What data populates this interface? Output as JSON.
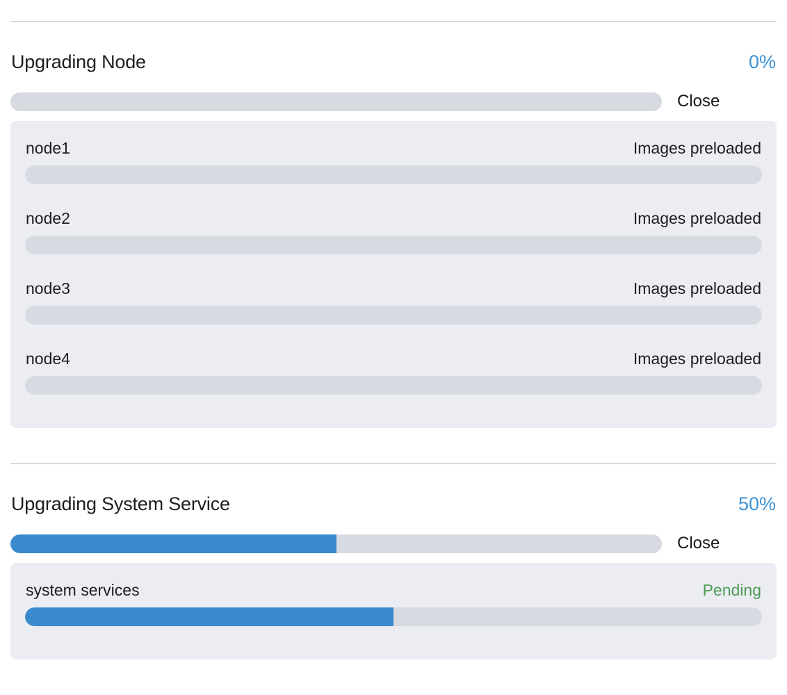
{
  "theme": {
    "accent_blue": "#398bce",
    "percent_blue": "#3c92d6",
    "success_green": "#4f9a56",
    "track_gray": "#d8dae1",
    "panel_gray": "#ebedf2",
    "divider_gray": "#d5d7e0"
  },
  "sections": [
    {
      "title": "Upgrading Node",
      "percent_label": "0%",
      "progress": 0,
      "close_label": "Close",
      "items": [
        {
          "name": "node1",
          "status": "Images preloaded",
          "status_variant": "default",
          "progress": 0
        },
        {
          "name": "node2",
          "status": "Images preloaded",
          "status_variant": "default",
          "progress": 0
        },
        {
          "name": "node3",
          "status": "Images preloaded",
          "status_variant": "default",
          "progress": 0
        },
        {
          "name": "node4",
          "status": "Images preloaded",
          "status_variant": "default",
          "progress": 0
        }
      ]
    },
    {
      "title": "Upgrading System Service",
      "percent_label": "50%",
      "progress": 50,
      "close_label": "Close",
      "items": [
        {
          "name": "system services",
          "status": "Pending",
          "status_variant": "success",
          "progress": 50
        }
      ]
    }
  ]
}
